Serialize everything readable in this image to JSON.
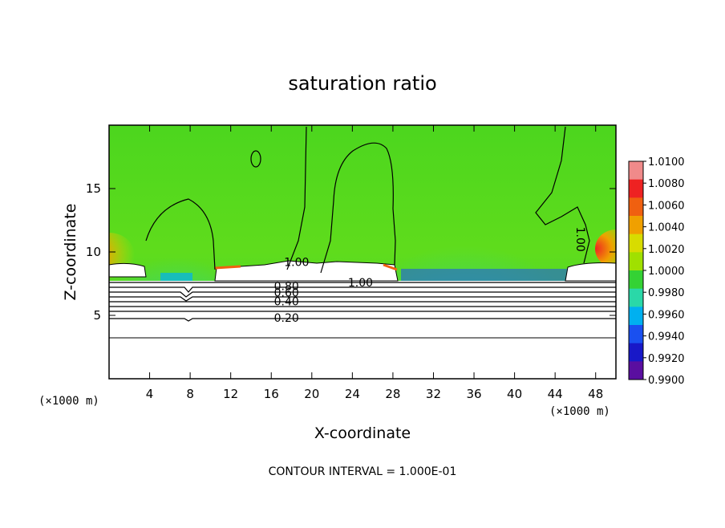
{
  "chart_data": {
    "type": "heatmap",
    "title": "saturation ratio",
    "xlabel": "X-coordinate",
    "ylabel": "Z-coordinate",
    "x_unit": "(×1000 m)",
    "x_unit_right": "(×1000 m)",
    "xlim": [
      0,
      50
    ],
    "ylim": [
      0,
      20
    ],
    "x_ticks": [
      4,
      8,
      12,
      16,
      20,
      24,
      28,
      32,
      36,
      40,
      44,
      48
    ],
    "y_ticks": [
      5,
      10,
      15
    ],
    "contour_interval_text": "CONTOUR INTERVAL = 1.000E-01",
    "colorbar": {
      "labels": [
        "1.0100",
        "1.0080",
        "1.0060",
        "1.0040",
        "1.0020",
        "1.0000",
        "0.9980",
        "0.9960",
        "0.9940",
        "0.9920",
        "0.9900"
      ],
      "colors": [
        "#f08a8a",
        "#ee2222",
        "#f06010",
        "#f0a000",
        "#d8dc00",
        "#a0e000",
        "#34d234",
        "#2ad8a8",
        "#00b0f0",
        "#1a50f0",
        "#1818c8",
        "#5a0ea0"
      ]
    },
    "contour_labels": [
      {
        "text": "1.00",
        "x": 18.5,
        "y": 9.2
      },
      {
        "text": "1.00",
        "x": 24.8,
        "y": 7.6
      },
      {
        "text": "1.00",
        "x": 46.5,
        "y": 11.0
      },
      {
        "text": "0.80",
        "x": 17.5,
        "y": 7.3
      },
      {
        "text": "0.60",
        "x": 17.5,
        "y": 6.8
      },
      {
        "text": "0.40",
        "x": 17.5,
        "y": 6.1
      },
      {
        "text": "0.20",
        "x": 17.5,
        "y": 4.8
      }
    ]
  }
}
